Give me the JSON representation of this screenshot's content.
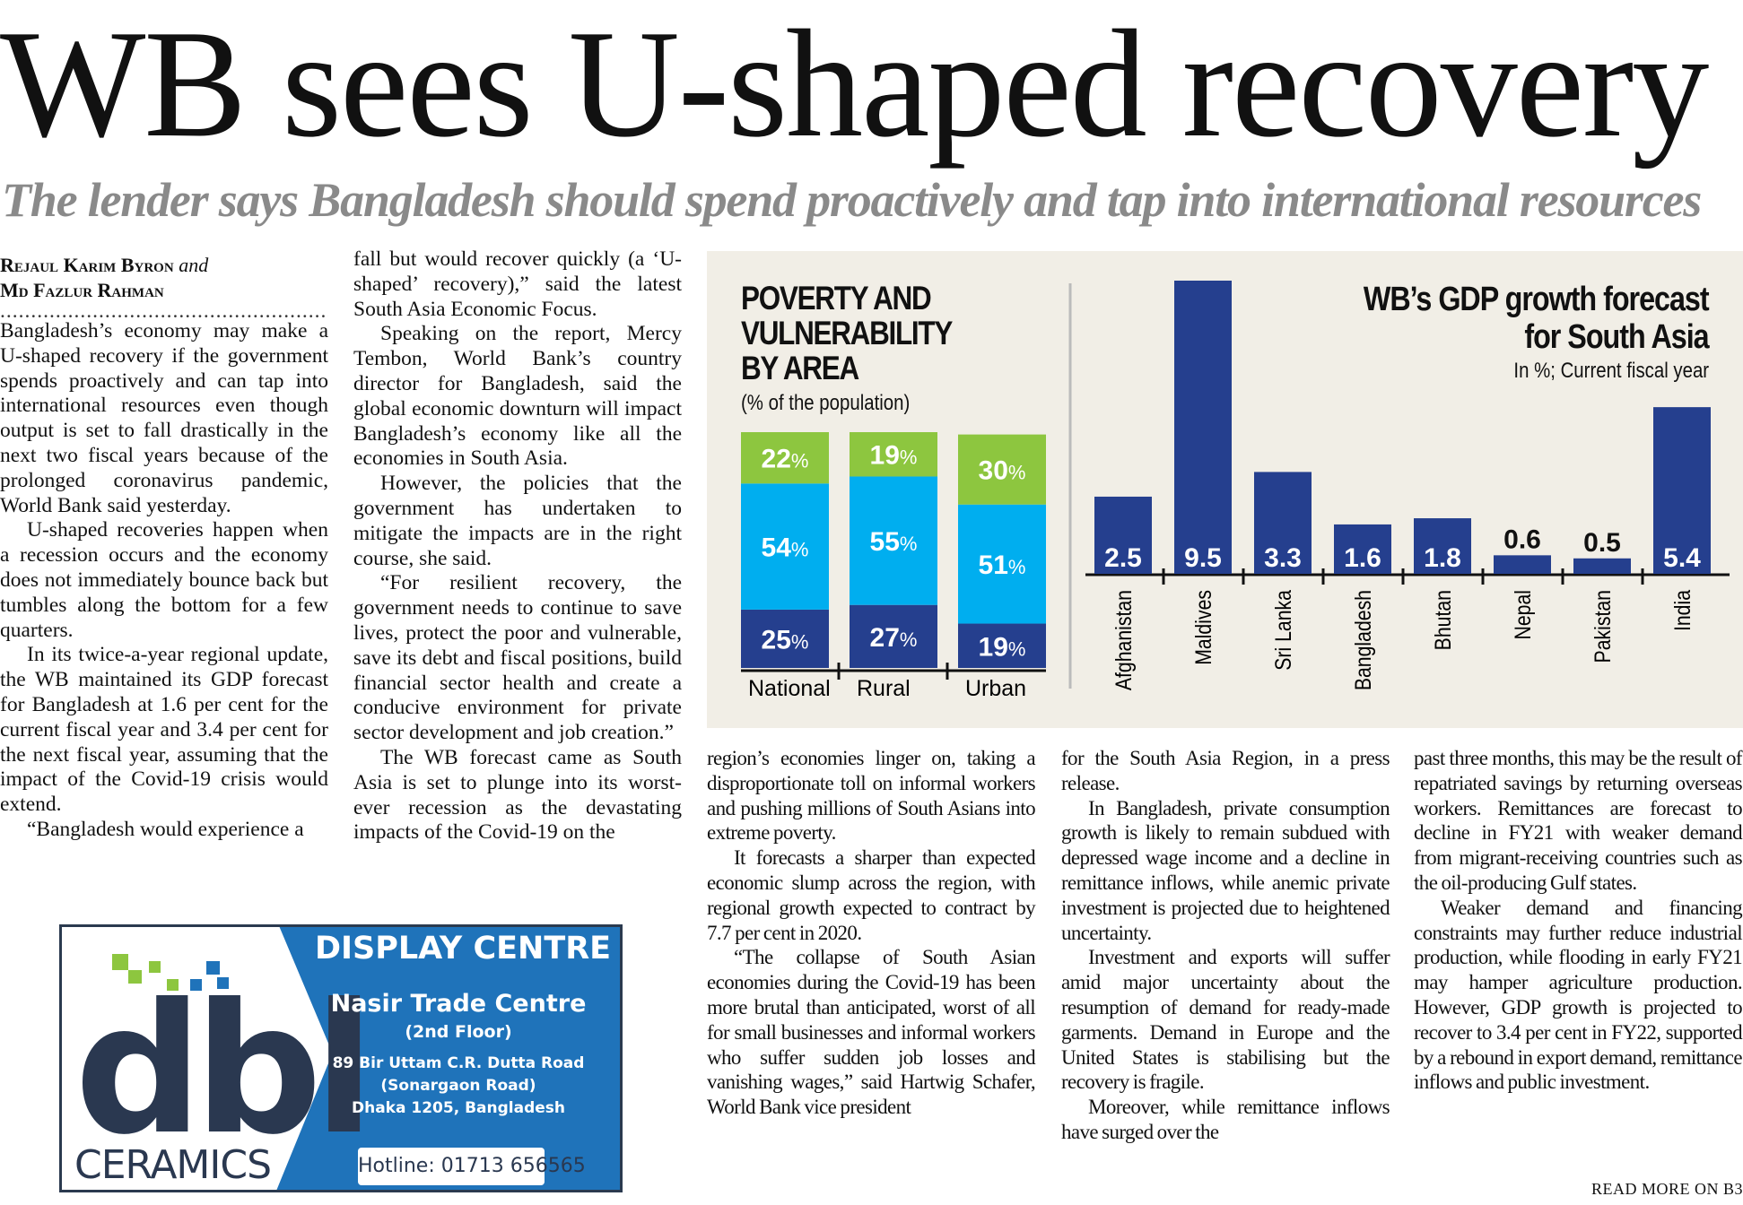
{
  "headline": "WB sees U-shaped recovery",
  "subheadline": "The lender says Bangladesh should spend proactively and tap into international resources",
  "byline": {
    "author1": "Rejaul Karim Byron",
    "joiner": "and",
    "author2": "Md Fazlur Rahman",
    "separator": "........................................................................"
  },
  "columns": [
    [
      {
        "indent": false,
        "text": "Bangladesh’s economy may make a U-shaped recovery if the government spends proactively and can tap into international resources even though output is set to fall drastically in the next two fiscal years because of the prolonged coronavirus pandemic, World Bank said yesterday."
      },
      {
        "indent": true,
        "text": "U-shaped recoveries happen when a recession occurs and the economy does not immediately bounce back but tumbles along the bottom for a few quarters."
      },
      {
        "indent": true,
        "text": "In its twice-a-year regional update, the WB maintained its GDP forecast for Bangladesh at 1.6 per cent for the current fiscal year and 3.4 per cent for the next fiscal year, assuming that the impact of the Covid-19 crisis would extend."
      },
      {
        "indent": true,
        "text": "“Bangladesh would experience a"
      }
    ],
    [
      {
        "indent": false,
        "text": "fall but would recover quickly (a ‘U-shaped’ recovery),” said the latest South Asia Economic Focus."
      },
      {
        "indent": true,
        "text": "Speaking on the report, Mercy Tembon, World Bank’s country director for Bangladesh, said the global economic downturn will impact Bangladesh’s economy like all the economies in South Asia."
      },
      {
        "indent": true,
        "text": "However, the policies that the government has undertaken to mitigate the impacts are in the right course, she said."
      },
      {
        "indent": true,
        "text": "“For resilient recovery, the government needs to continue to save lives, protect the poor and vulnerable, save its debt and fiscal positions, build financial sector health and create a conducive environment for private sector development and job creation.”"
      },
      {
        "indent": true,
        "text": "The WB forecast came as South Asia is set to plunge into its worst-ever recession as the devastating impacts of the Covid-19 on the"
      }
    ],
    [
      {
        "indent": false,
        "text": "region’s economies linger on, taking a disproportionate toll on informal workers and pushing millions of South Asians into extreme poverty."
      },
      {
        "indent": true,
        "text": "It forecasts a sharper than expected economic slump across the region, with regional growth expected to contract by 7.7 per cent in 2020."
      },
      {
        "indent": true,
        "text": "“The collapse of South Asian economies during the Covid-19 has been more brutal than anticipated, worst of all for small businesses and informal workers who suffer sudden job losses and vanishing wages,” said Hartwig Schafer, World Bank vice president"
      }
    ],
    [
      {
        "indent": false,
        "text": "for the South Asia Region, in a press release."
      },
      {
        "indent": true,
        "text": "In Bangladesh, private consumption growth is likely to remain subdued with depressed wage income and a decline in remittance inflows, while anemic private investment is projected due to heightened uncertainty."
      },
      {
        "indent": true,
        "text": "Investment and exports will suffer amid major uncertainty about the resumption of demand for ready-made garments. Demand in Europe and the United States is stabilising but the recovery is fragile."
      },
      {
        "indent": true,
        "text": "Moreover, while remittance inflows have surged over the"
      }
    ],
    [
      {
        "indent": false,
        "text": "past three months, this may be the result of repatriated savings by returning overseas workers. Remittances are forecast to decline in FY21 with weaker demand from migrant-receiving countries such as the oil-producing Gulf states."
      },
      {
        "indent": true,
        "text": "Weaker demand and financing constraints may further reduce industrial production, while flooding in early FY21 may hamper agriculture production. However, GDP growth is projected to recover to 3.4 per cent in FY22, supported by a rebound in export demand, remittance inflows and public investment."
      }
    ]
  ],
  "read_more": "READ MORE ON B3",
  "chart_data": [
    {
      "type": "bar",
      "stacked": true,
      "title": "POVERTY AND VULNERABILITY BY AREA",
      "subtitle": "(% of the population)",
      "categories": [
        "National",
        "Rural",
        "Urban"
      ],
      "series": [
        {
          "color": "#253f8e",
          "values": [
            25,
            27,
            19
          ]
        },
        {
          "color": "#00aeef",
          "values": [
            54,
            55,
            51
          ]
        },
        {
          "color": "#8dc63f",
          "values": [
            22,
            19,
            30
          ]
        }
      ],
      "value_suffix": "%",
      "ylim": [
        0,
        101
      ]
    },
    {
      "type": "bar",
      "title": "WB’s GDP growth forecast for South Asia",
      "title_lines": [
        "WB’s GDP growth forecast",
        "for South Asia"
      ],
      "subtitle": "In %; Current fiscal year",
      "categories": [
        "Afghanistan",
        "Maldives",
        "Sri Lanka",
        "Bangladesh",
        "Bhutan",
        "Nepal",
        "Pakistan",
        "India"
      ],
      "values": [
        2.5,
        9.5,
        3.3,
        1.6,
        1.8,
        0.6,
        0.5,
        5.4
      ],
      "color": "#253f8e",
      "ylim": [
        0,
        9.5
      ]
    }
  ],
  "advert": {
    "brand": "dbl",
    "brand_sub": "CERAMICS",
    "heading": "DISPLAY CENTRE",
    "venue": "Nasir Trade Centre",
    "floor": "(2nd Floor)",
    "address_lines": [
      "89 Bir Uttam C.R. Dutta Road",
      "(Sonargaon Road)",
      "Dhaka 1205, Bangladesh"
    ],
    "hotline_label": "Hotline:",
    "hotline_number": "01713 656565",
    "colors": {
      "blue": "#1f73ba",
      "green": "#8dc63f",
      "dark": "#2a3850"
    }
  }
}
